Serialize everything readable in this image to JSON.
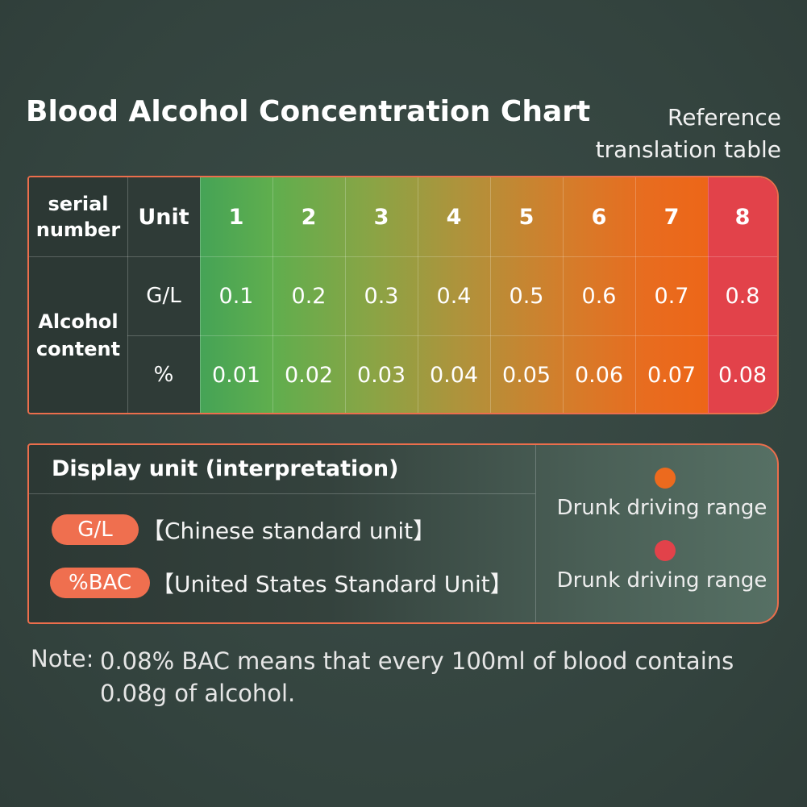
{
  "header": {
    "title": "Blood Alcohol Concentration Chart",
    "subtitle": "Reference translation table"
  },
  "table": {
    "serial_header": "serial number",
    "unit_header": "Unit",
    "serial_numbers": [
      "1",
      "2",
      "3",
      "4",
      "5",
      "6",
      "7",
      "8"
    ],
    "row_group_label": "Alcohol content",
    "rows": [
      {
        "unit": "G/L",
        "values": [
          "0.1",
          "0.2",
          "0.3",
          "0.4",
          "0.5",
          "0.6",
          "0.7",
          "0.8"
        ]
      },
      {
        "unit": "%",
        "values": [
          "0.01",
          "0.02",
          "0.03",
          "0.04",
          "0.05",
          "0.06",
          "0.07",
          "0.08"
        ]
      }
    ],
    "colors": {
      "border": "#ec6e4c",
      "green": "#45a356",
      "orange": "#e86c1f",
      "red": "#e2424a"
    }
  },
  "legend": {
    "heading": "Display unit (interpretation)",
    "units": [
      {
        "badge": "G/L",
        "description": "【Chinese standard unit】"
      },
      {
        "badge": "%BAC",
        "description": "【United States Standard Unit】"
      }
    ],
    "ranges": [
      {
        "label": "Drunk driving range",
        "color": "#ec6a1e"
      },
      {
        "label": "Drunk driving range",
        "color": "#e2424a"
      }
    ]
  },
  "note": {
    "label": "Note:",
    "text": "0.08% BAC means that every 100ml of blood contains 0.08g of alcohol."
  }
}
